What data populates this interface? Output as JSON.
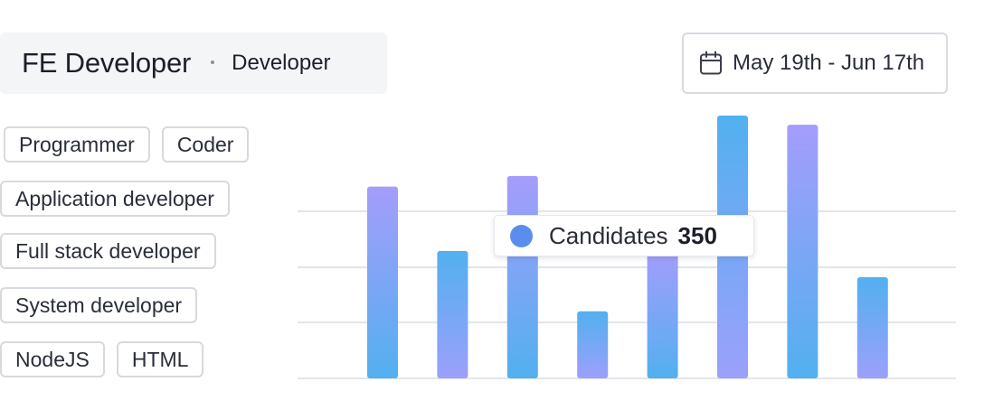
{
  "header": {
    "title": "FE Developer",
    "subtitle": "Developer"
  },
  "date_range": {
    "label": "May 19th - Jun 17th",
    "icon": "calendar-icon"
  },
  "tags": [
    [
      "Programmer",
      "Coder"
    ],
    [
      "Application developer"
    ],
    [
      "Full stack developer"
    ],
    [
      "System developer"
    ],
    [
      "NodeJS",
      "HTML"
    ]
  ],
  "tooltip": {
    "label": "Candidates",
    "value": "350",
    "color": "#5b8def"
  },
  "colors": {
    "blue_top": "#52b0ef",
    "blue_bottom": "#9ca0fb",
    "purple_top": "#a59dfb",
    "purple_bottom": "#52b0ef",
    "grid": "#e3e5e9"
  },
  "chart_data": {
    "type": "bar",
    "bars": [
      {
        "relative_height": 0.73,
        "gradient": "purple-to-blue"
      },
      {
        "relative_height": 0.485,
        "gradient": "blue-to-purple"
      },
      {
        "relative_height": 0.77,
        "gradient": "purple-to-blue"
      },
      {
        "relative_height": 0.255,
        "gradient": "blue-to-purple"
      },
      {
        "relative_height": 0.49,
        "gradient": "purple-to-blue"
      },
      {
        "relative_height": 1.0,
        "gradient": "blue-to-purple"
      },
      {
        "relative_height": 0.965,
        "gradient": "purple-to-blue"
      },
      {
        "relative_height": 0.385,
        "gradient": "blue-to-purple"
      }
    ],
    "gridlines": 4,
    "grid": true,
    "legend": "none"
  }
}
